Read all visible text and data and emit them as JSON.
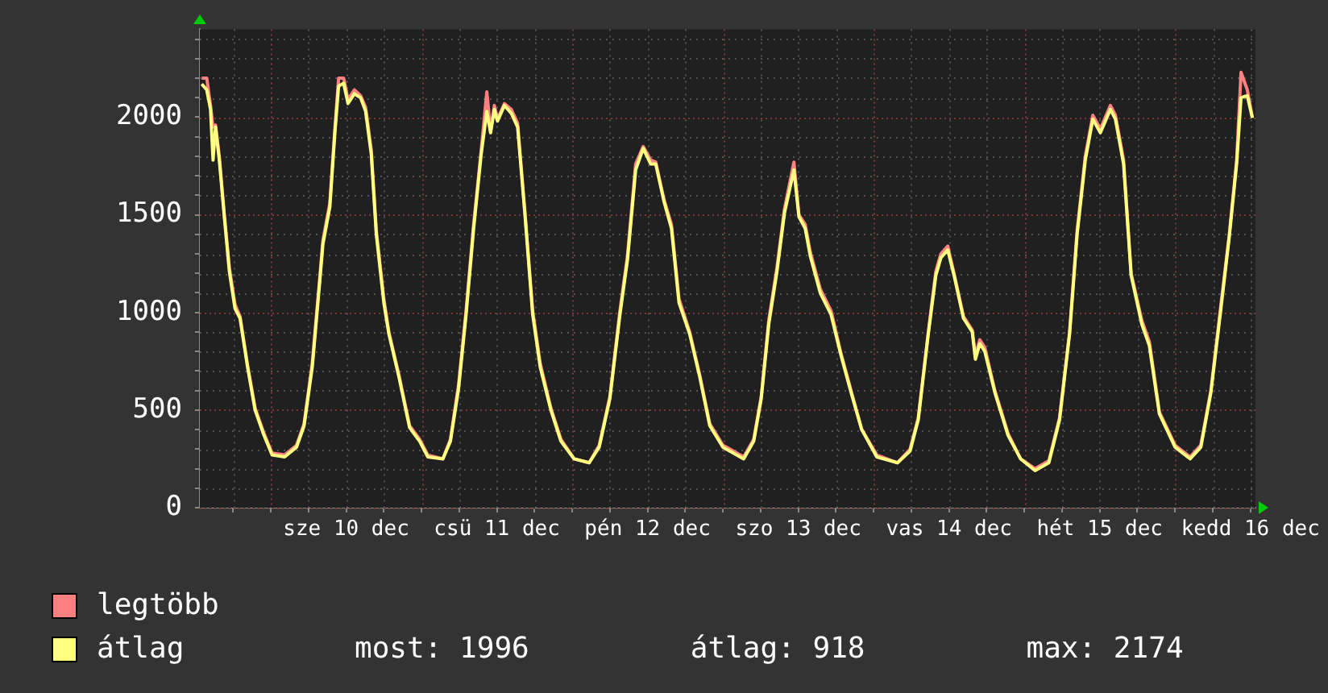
{
  "chart_data": {
    "type": "line",
    "legend": "bottom",
    "grid": true,
    "marker": "none",
    "line_style": "solid",
    "annotations": [
      "most: 1996",
      "átlag: 918",
      "max: 2174"
    ],
    "xlim": [
      "--12-09T12:42",
      "--12-16T12:48"
    ],
    "xticks": [
      {
        "value": "--12-09T18:00",
        "label": null
      },
      {
        "value": "--12-10T00:00",
        "label": null
      },
      {
        "value": "--12-10T06:00",
        "label": null
      },
      {
        "value": "--12-10T12:00",
        "label": "sze 10 dec"
      },
      {
        "value": "--12-10T18:00",
        "label": null
      },
      {
        "value": "--12-11T00:00",
        "label": null
      },
      {
        "value": "--12-11T06:00",
        "label": null
      },
      {
        "value": "--12-11T12:00",
        "label": "csü 11 dec"
      },
      {
        "value": "--12-11T18:00",
        "label": null
      },
      {
        "value": "--12-12T00:00",
        "label": null
      },
      {
        "value": "--12-12T06:00",
        "label": null
      },
      {
        "value": "--12-12T12:00",
        "label": "pén 12 dec"
      },
      {
        "value": "--12-12T18:00",
        "label": null
      },
      {
        "value": "--12-13T00:00",
        "label": null
      },
      {
        "value": "--12-13T06:00",
        "label": null
      },
      {
        "value": "--12-13T12:00",
        "label": "szo 13 dec"
      },
      {
        "value": "--12-13T18:00",
        "label": null
      },
      {
        "value": "--12-14T00:00",
        "label": null
      },
      {
        "value": "--12-14T06:00",
        "label": null
      },
      {
        "value": "--12-14T12:00",
        "label": "vas 14 dec"
      },
      {
        "value": "--12-14T18:00",
        "label": null
      },
      {
        "value": "--12-15T00:00",
        "label": null
      },
      {
        "value": "--12-15T06:00",
        "label": null
      },
      {
        "value": "--12-15T12:00",
        "label": "hét 15 dec"
      },
      {
        "value": "--12-15T18:00",
        "label": null
      },
      {
        "value": "--12-16T00:00",
        "label": null
      },
      {
        "value": "--12-16T06:00",
        "label": null
      },
      {
        "value": "--12-16T12:00",
        "label": "kedd 16 dec"
      }
    ],
    "ylim": [
      0,
      2450
    ],
    "yticks": [
      0,
      {
        "value": 100,
        "label": null
      },
      {
        "value": 200,
        "label": null
      },
      {
        "value": 300,
        "label": null
      },
      {
        "value": 400,
        "label": null
      },
      500,
      {
        "value": 600,
        "label": null
      },
      {
        "value": 700,
        "label": null
      },
      {
        "value": 800,
        "label": null
      },
      {
        "value": 900,
        "label": null
      },
      1000,
      {
        "value": 1100,
        "label": null
      },
      {
        "value": 1200,
        "label": null
      },
      {
        "value": 1300,
        "label": null
      },
      {
        "value": 1400,
        "label": null
      },
      1500,
      {
        "value": 1600,
        "label": null
      },
      {
        "value": 1700,
        "label": null
      },
      {
        "value": 1800,
        "label": null
      },
      {
        "value": 1900,
        "label": null
      },
      2000,
      {
        "value": 2100,
        "label": null
      },
      {
        "value": 2200,
        "label": null
      },
      {
        "value": 2300,
        "label": null
      },
      {
        "value": 2400,
        "label": null
      }
    ],
    "x": [
      "--12-09T13:00",
      "--12-09T13:48",
      "--12-09T14:24",
      "--12-09T14:48",
      "--12-09T15:12",
      "--12-09T15:48",
      "--12-09T16:36",
      "--12-09T17:24",
      "--12-09T18:18",
      "--12-09T19:06",
      "--12-09T20:18",
      "--12-09T21:30",
      "--12-09T22:48",
      "--12-10T00:12",
      "--12-10T02:12",
      "--12-10T04:06",
      "--12-10T05:18",
      "--12-10T06:36",
      "--12-10T07:48",
      "--12-10T08:18",
      "--12-10T09:24",
      "--12-10T10:12",
      "--12-10T10:48",
      "--12-10T11:36",
      "--12-10T12:18",
      "--12-10T13:18",
      "--12-10T14:18",
      "--12-10T15:06",
      "--12-10T16:00",
      "--12-10T16:48",
      "--12-10T18:00",
      "--12-10T18:48",
      "--12-10T20:24",
      "--12-10T22:06",
      "--12-10T23:42",
      "--12-11T01:00",
      "--12-11T03:24",
      "--12-11T04:36",
      "--12-11T05:54",
      "--12-11T07:06",
      "--12-11T08:18",
      "--12-11T09:30",
      "--12-11T10:24",
      "--12-11T11:00",
      "--12-11T11:36",
      "--12-11T12:06",
      "--12-11T13:12",
      "--12-11T14:18",
      "--12-11T15:18",
      "--12-11T16:30",
      "--12-11T17:42",
      "--12-11T18:54",
      "--12-11T20:36",
      "--12-11T22:12",
      "--12-12T00:18",
      "--12-12T02:42",
      "--12-12T04:18",
      "--12-12T06:00",
      "--12-12T07:36",
      "--12-12T08:48",
      "--12-12T10:06",
      "--12-12T11:18",
      "--12-12T12:30",
      "--12-12T13:18",
      "--12-12T14:36",
      "--12-12T15:48",
      "--12-12T17:00",
      "--12-12T18:42",
      "--12-12T20:18",
      "--12-12T21:54",
      "--12-13T00:00",
      "--12-13T03:18",
      "--12-13T04:54",
      "--12-13T06:06",
      "--12-13T07:18",
      "--12-13T08:36",
      "--12-13T09:48",
      "--12-13T11:18",
      "--12-13T12:06",
      "--12-13T13:06",
      "--12-13T13:54",
      "--12-13T15:30",
      "--12-13T17:12",
      "--12-13T18:48",
      "--12-13T20:24",
      "--12-13T22:06",
      "--12-14T00:30",
      "--12-14T03:48",
      "--12-14T05:48",
      "--12-14T07:06",
      "--12-14T08:42",
      "--12-14T09:54",
      "--12-14T10:42",
      "--12-14T11:48",
      "--12-14T12:48",
      "--12-14T14:18",
      "--12-14T15:42",
      "--12-14T16:12",
      "--12-14T16:54",
      "--12-14T17:42",
      "--12-14T19:18",
      "--12-14T21:24",
      "--12-14T23:24",
      "--12-15T01:42",
      "--12-15T03:54",
      "--12-15T05:36",
      "--12-15T07:12",
      "--12-15T08:24",
      "--12-15T09:42",
      "--12-15T10:54",
      "--12-15T12:06",
      "--12-15T13:42",
      "--12-15T14:30",
      "--12-15T15:48",
      "--12-15T17:00",
      "--12-15T18:42",
      "--12-15T19:54",
      "--12-15T21:30",
      "--12-16T00:00",
      "--12-16T02:24",
      "--12-16T04:06",
      "--12-16T05:42",
      "--12-16T07:18",
      "--12-16T08:36",
      "--12-16T09:48",
      "--12-16T10:30",
      "--12-16T11:30",
      "--12-16T12:18"
    ],
    "series": [
      {
        "name": "legtöbb",
        "color": "#ff8080",
        "values": [
          2200,
          2200,
          2060,
          1950,
          1960,
          1800,
          1500,
          1230,
          1040,
          980,
          730,
          510,
          390,
          280,
          270,
          320,
          430,
          740,
          1180,
          1370,
          1560,
          1940,
          2200,
          2200,
          2090,
          2140,
          2110,
          2050,
          1830,
          1420,
          1070,
          900,
          680,
          420,
          350,
          270,
          250,
          350,
          630,
          1010,
          1450,
          1830,
          2130,
          1930,
          2060,
          1990,
          2070,
          2040,
          1970,
          1500,
          1010,
          740,
          510,
          350,
          250,
          230,
          320,
          570,
          1010,
          1290,
          1760,
          1850,
          1780,
          1770,
          1580,
          1450,
          1070,
          900,
          680,
          430,
          320,
          260,
          350,
          570,
          960,
          1230,
          1530,
          1770,
          1500,
          1450,
          1310,
          1120,
          1010,
          790,
          600,
          400,
          270,
          230,
          300,
          460,
          900,
          1210,
          1300,
          1340,
          1200,
          980,
          910,
          780,
          860,
          820,
          600,
          380,
          250,
          200,
          240,
          460,
          900,
          1420,
          1800,
          2010,
          1940,
          2060,
          2010,
          1780,
          1200,
          960,
          850,
          490,
          320,
          260,
          320,
          600,
          1040,
          1390,
          1780,
          2230,
          2140,
          2000
        ]
      },
      {
        "name": "átlag",
        "color": "#ffff80",
        "values": [
          2170,
          2140,
          2040,
          1780,
          1950,
          1780,
          1490,
          1210,
          1020,
          970,
          720,
          500,
          380,
          270,
          260,
          310,
          420,
          720,
          1160,
          1350,
          1540,
          1920,
          2160,
          2174,
          2070,
          2120,
          2100,
          2030,
          1810,
          1400,
          1050,
          890,
          670,
          410,
          340,
          260,
          250,
          340,
          610,
          990,
          1430,
          1810,
          2030,
          1920,
          2040,
          1980,
          2060,
          2020,
          1950,
          1490,
          990,
          720,
          500,
          340,
          250,
          230,
          310,
          560,
          990,
          1270,
          1730,
          1840,
          1760,
          1760,
          1570,
          1430,
          1050,
          890,
          670,
          420,
          310,
          250,
          340,
          560,
          940,
          1210,
          1510,
          1730,
          1490,
          1430,
          1290,
          1100,
          990,
          780,
          590,
          400,
          260,
          230,
          290,
          450,
          890,
          1190,
          1280,
          1320,
          1190,
          970,
          900,
          760,
          840,
          800,
          590,
          370,
          250,
          190,
          230,
          450,
          890,
          1400,
          1780,
          1990,
          1920,
          2040,
          1990,
          1760,
          1190,
          940,
          830,
          480,
          310,
          250,
          310,
          590,
          1020,
          1380,
          1760,
          2100,
          2110,
          1996
        ]
      }
    ]
  }
}
